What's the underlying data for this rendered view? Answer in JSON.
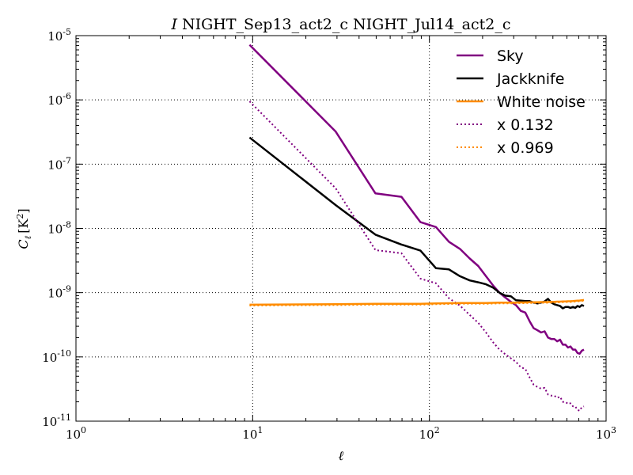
{
  "chart_data": {
    "type": "line",
    "title_italic": "I",
    "title": "NIGHT_Sep13_act2_c NIGHT_Jul14_act2_c",
    "xlabel": "ℓ",
    "ylabel": "C_ℓ [K²]",
    "x_scale": "log",
    "y_scale": "log",
    "xlim": [
      1,
      1000
    ],
    "ylim": [
      1e-11,
      1e-05
    ],
    "grid": true,
    "legend_position": "top-right",
    "x_ticks": [
      {
        "value": 1,
        "base": "10",
        "exp": "0"
      },
      {
        "value": 10,
        "base": "10",
        "exp": "1"
      },
      {
        "value": 100,
        "base": "10",
        "exp": "2"
      },
      {
        "value": 1000,
        "base": "10",
        "exp": "3"
      }
    ],
    "y_ticks": [
      {
        "value": 1e-11,
        "base": "10",
        "exp": "-11"
      },
      {
        "value": 1e-10,
        "base": "10",
        "exp": "-10"
      },
      {
        "value": 1e-09,
        "base": "10",
        "exp": "-9"
      },
      {
        "value": 1e-08,
        "base": "10",
        "exp": "-8"
      },
      {
        "value": 1e-07,
        "base": "10",
        "exp": "-7"
      },
      {
        "value": 1e-06,
        "base": "10",
        "exp": "-6"
      },
      {
        "value": 1e-05,
        "base": "10",
        "exp": "-5"
      }
    ],
    "series": [
      {
        "name": "Sky",
        "color": "#800080",
        "style": "solid",
        "x": [
          9.6,
          29.5,
          49.5,
          69.5,
          89,
          109,
          129,
          149,
          169,
          189,
          209,
          229,
          249,
          269,
          289,
          309,
          329,
          349,
          369,
          389,
          409,
          429,
          449,
          469,
          489,
          509,
          529,
          549,
          569,
          589,
          609,
          629,
          649,
          669,
          689,
          709,
          729,
          749
        ],
        "y": [
          7.2e-06,
          3.2e-07,
          3.5e-08,
          3.1e-08,
          1.25e-08,
          1.05e-08,
          6.2e-09,
          4.8e-09,
          3.4e-09,
          2.6e-09,
          1.8e-09,
          1.3e-09,
          1e-09,
          8.4e-10,
          7.2e-10,
          6.4e-10,
          5.2e-10,
          4.9e-10,
          3.6e-10,
          2.8e-10,
          2.6e-10,
          2.4e-10,
          2.5e-10,
          2e-10,
          1.9e-10,
          1.9e-10,
          1.75e-10,
          1.85e-10,
          1.55e-10,
          1.55e-10,
          1.4e-10,
          1.45e-10,
          1.3e-10,
          1.3e-10,
          1.15e-10,
          1.12e-10,
          1.25e-10,
          1.3e-10
        ]
      },
      {
        "name": "Jackknife",
        "color": "#000000",
        "style": "solid",
        "x": [
          9.6,
          29.5,
          49.5,
          69.5,
          89,
          109,
          129,
          149,
          169,
          189,
          209,
          229,
          249,
          269,
          289,
          309,
          329,
          349,
          369,
          389,
          409,
          429,
          449,
          469,
          489,
          509,
          529,
          549,
          569,
          589,
          609,
          629,
          649,
          669,
          689,
          709,
          729,
          749
        ],
        "y": [
          2.6e-07,
          2.3e-08,
          8e-09,
          5.6e-09,
          4.5e-09,
          2.4e-09,
          2.3e-09,
          1.8e-09,
          1.55e-09,
          1.45e-09,
          1.35e-09,
          1.2e-09,
          1e-09,
          9e-10,
          8.8e-10,
          7.6e-10,
          7.5e-10,
          7.4e-10,
          7.4e-10,
          7e-10,
          6.8e-10,
          7e-10,
          7.3e-10,
          8e-10,
          7e-10,
          6.6e-10,
          6.4e-10,
          6.2e-10,
          5.7e-10,
          6e-10,
          6e-10,
          5.8e-10,
          6e-10,
          5.8e-10,
          6.2e-10,
          6e-10,
          6.4e-10,
          6.2e-10
        ]
      },
      {
        "name": "White noise",
        "color": "#ff8c00",
        "style": "solid",
        "x": [
          9.6,
          29.5,
          49.5,
          69.5,
          89,
          109,
          129,
          149,
          169,
          189,
          209,
          229,
          249,
          269,
          289,
          309,
          329,
          349,
          369,
          389,
          409,
          429,
          449,
          469,
          489,
          509,
          529,
          549,
          569,
          589,
          609,
          629,
          649,
          669,
          689,
          709,
          729,
          749
        ],
        "y": [
          6.5e-10,
          6.6e-10,
          6.7e-10,
          6.7e-10,
          6.7e-10,
          6.8e-10,
          6.85e-10,
          6.9e-10,
          6.9e-10,
          6.9e-10,
          6.9e-10,
          6.95e-10,
          7e-10,
          7e-10,
          7e-10,
          7e-10,
          7.05e-10,
          7.05e-10,
          7.1e-10,
          7.1e-10,
          7.1e-10,
          7.15e-10,
          7.15e-10,
          7.15e-10,
          7.2e-10,
          7.2e-10,
          7.25e-10,
          7.25e-10,
          7.3e-10,
          7.3e-10,
          7.35e-10,
          7.35e-10,
          7.4e-10,
          7.45e-10,
          7.5e-10,
          7.55e-10,
          7.6e-10,
          7.7e-10
        ]
      },
      {
        "name": "x 0.132",
        "color": "#800080",
        "style": "dotted",
        "x": [
          9.6,
          29.5,
          49.5,
          69.5,
          89,
          109,
          129,
          149,
          169,
          189,
          209,
          229,
          249,
          269,
          289,
          309,
          329,
          349,
          369,
          389,
          409,
          429,
          449,
          469,
          489,
          509,
          529,
          549,
          569,
          589,
          609,
          629,
          649,
          669,
          689,
          709,
          729,
          749
        ],
        "y": [
          9.5e-07,
          4.2e-08,
          4.6e-09,
          4.1e-09,
          1.65e-09,
          1.4e-09,
          8.2e-10,
          6.3e-10,
          4.5e-10,
          3.4e-10,
          2.4e-10,
          1.7e-10,
          1.3e-10,
          1.1e-10,
          9.5e-11,
          8.4e-11,
          6.9e-11,
          6.5e-11,
          4.8e-11,
          3.7e-11,
          3.4e-11,
          3.2e-11,
          3.3e-11,
          2.6e-11,
          2.5e-11,
          2.5e-11,
          2.3e-11,
          2.4e-11,
          2e-11,
          2e-11,
          1.85e-11,
          1.9e-11,
          1.7e-11,
          1.7e-11,
          1.5e-11,
          1.45e-11,
          1.65e-11,
          1.7e-11
        ]
      },
      {
        "name": "x 0.969",
        "color": "#ff8c00",
        "style": "dotted",
        "x": [
          9.6,
          29.5,
          49.5,
          69.5,
          89,
          109,
          129,
          149,
          169,
          189,
          209,
          229,
          249,
          269,
          289,
          309,
          329,
          349,
          369,
          389,
          409,
          429,
          449,
          469,
          489,
          509,
          529,
          549,
          569,
          589,
          609,
          629,
          649,
          669,
          689,
          709,
          729,
          749
        ],
        "y": [
          6.3e-10,
          6.4e-10,
          6.5e-10,
          6.5e-10,
          6.5e-10,
          6.6e-10,
          6.65e-10,
          6.7e-10,
          6.7e-10,
          6.7e-10,
          6.7e-10,
          6.75e-10,
          6.8e-10,
          6.8e-10,
          6.8e-10,
          6.8e-10,
          6.85e-10,
          6.85e-10,
          6.9e-10,
          6.9e-10,
          6.9e-10,
          6.95e-10,
          6.95e-10,
          6.95e-10,
          7e-10,
          7e-10,
          7.05e-10,
          7.05e-10,
          7.1e-10,
          7.1e-10,
          7.15e-10,
          7.15e-10,
          7.2e-10,
          7.25e-10,
          7.3e-10,
          7.35e-10,
          7.4e-10,
          7.5e-10
        ]
      }
    ]
  }
}
